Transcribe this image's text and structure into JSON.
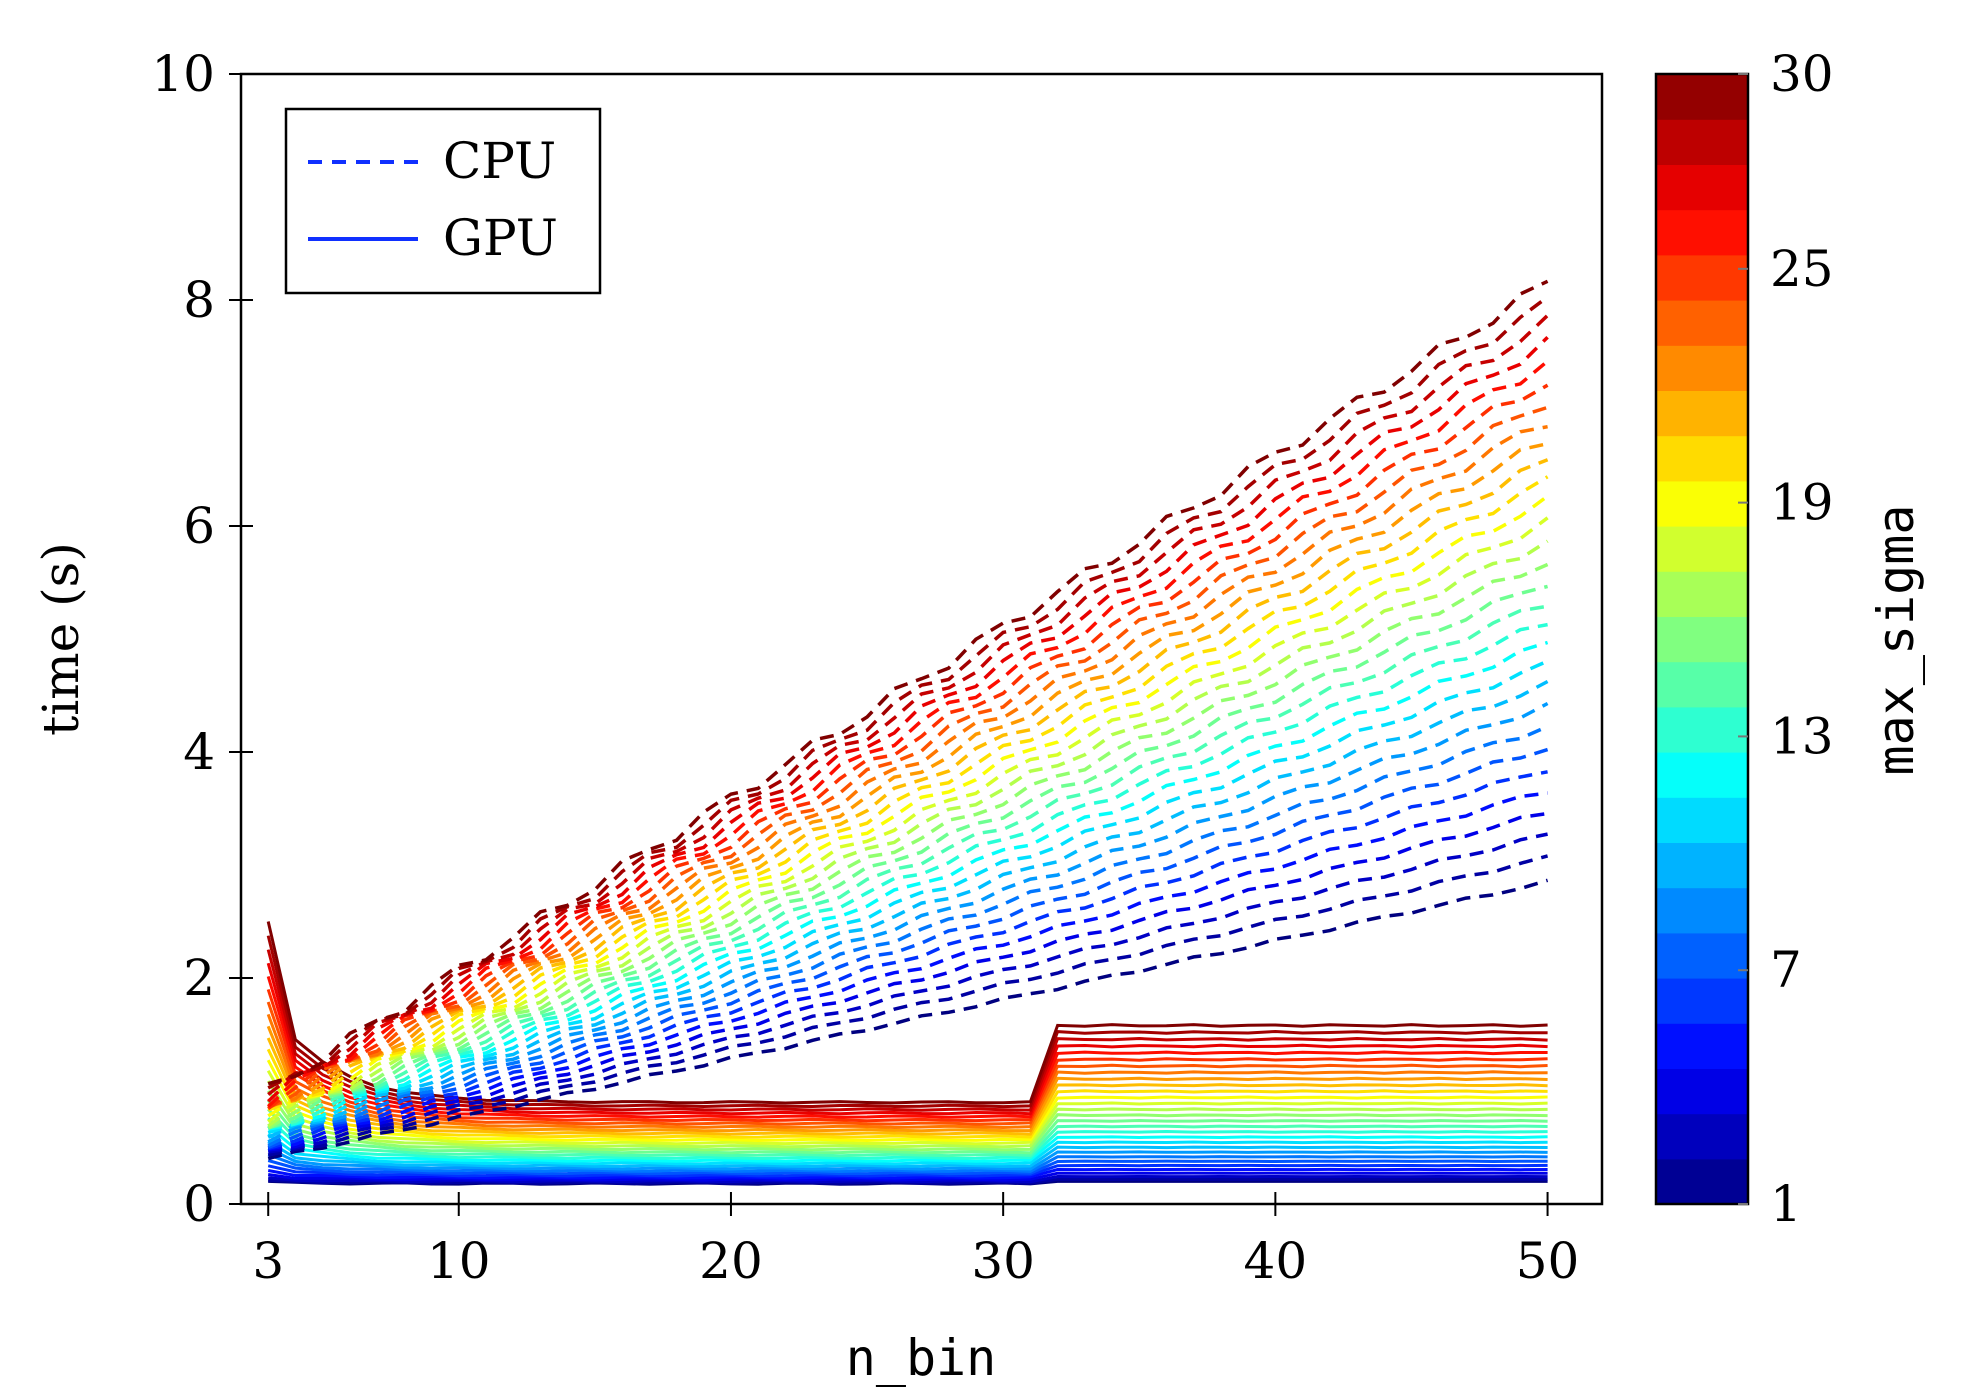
{
  "chart_data": {
    "type": "line",
    "xlabel": "n_bin",
    "ylabel": "time (s)",
    "xlim": [
      2,
      52
    ],
    "ylim": [
      0,
      10
    ],
    "x_ticks": [
      3,
      10,
      20,
      30,
      40,
      50
    ],
    "y_ticks": [
      0,
      2,
      4,
      6,
      8,
      10
    ],
    "grid": false,
    "legend": {
      "placement": "top-left",
      "entries": [
        {
          "label": "CPU",
          "style": "dashed",
          "color": "#1030ff"
        },
        {
          "label": "GPU",
          "style": "solid",
          "color": "#1030ff"
        }
      ]
    },
    "colorbar": {
      "label": "max_sigma",
      "range": [
        1,
        30
      ],
      "ticks": [
        1,
        7,
        13,
        19,
        25,
        30
      ],
      "colormap": "jet"
    },
    "series_model": {
      "note": "One CPU (dashed) and one GPU (solid) line per max_sigma value from 1 to 30; color encodes max_sigma.",
      "sigma_values": [
        1,
        30
      ],
      "cpu_endpoints": {
        "sigma_1": {
          "x": [
            3,
            50
          ],
          "y": [
            0.4,
            2.85
          ]
        },
        "sigma_30": {
          "x": [
            3,
            50
          ],
          "y": [
            1.0,
            8.15
          ]
        }
      },
      "gpu_levels": {
        "sigma_1": {
          "x": [
            3,
            31,
            32,
            50
          ],
          "y": [
            0.2,
            0.18,
            0.2,
            0.2
          ]
        },
        "sigma_30": {
          "x": [
            3,
            31,
            32,
            50
          ],
          "y": [
            2.5,
            0.9,
            1.58,
            1.58
          ]
        }
      }
    }
  }
}
